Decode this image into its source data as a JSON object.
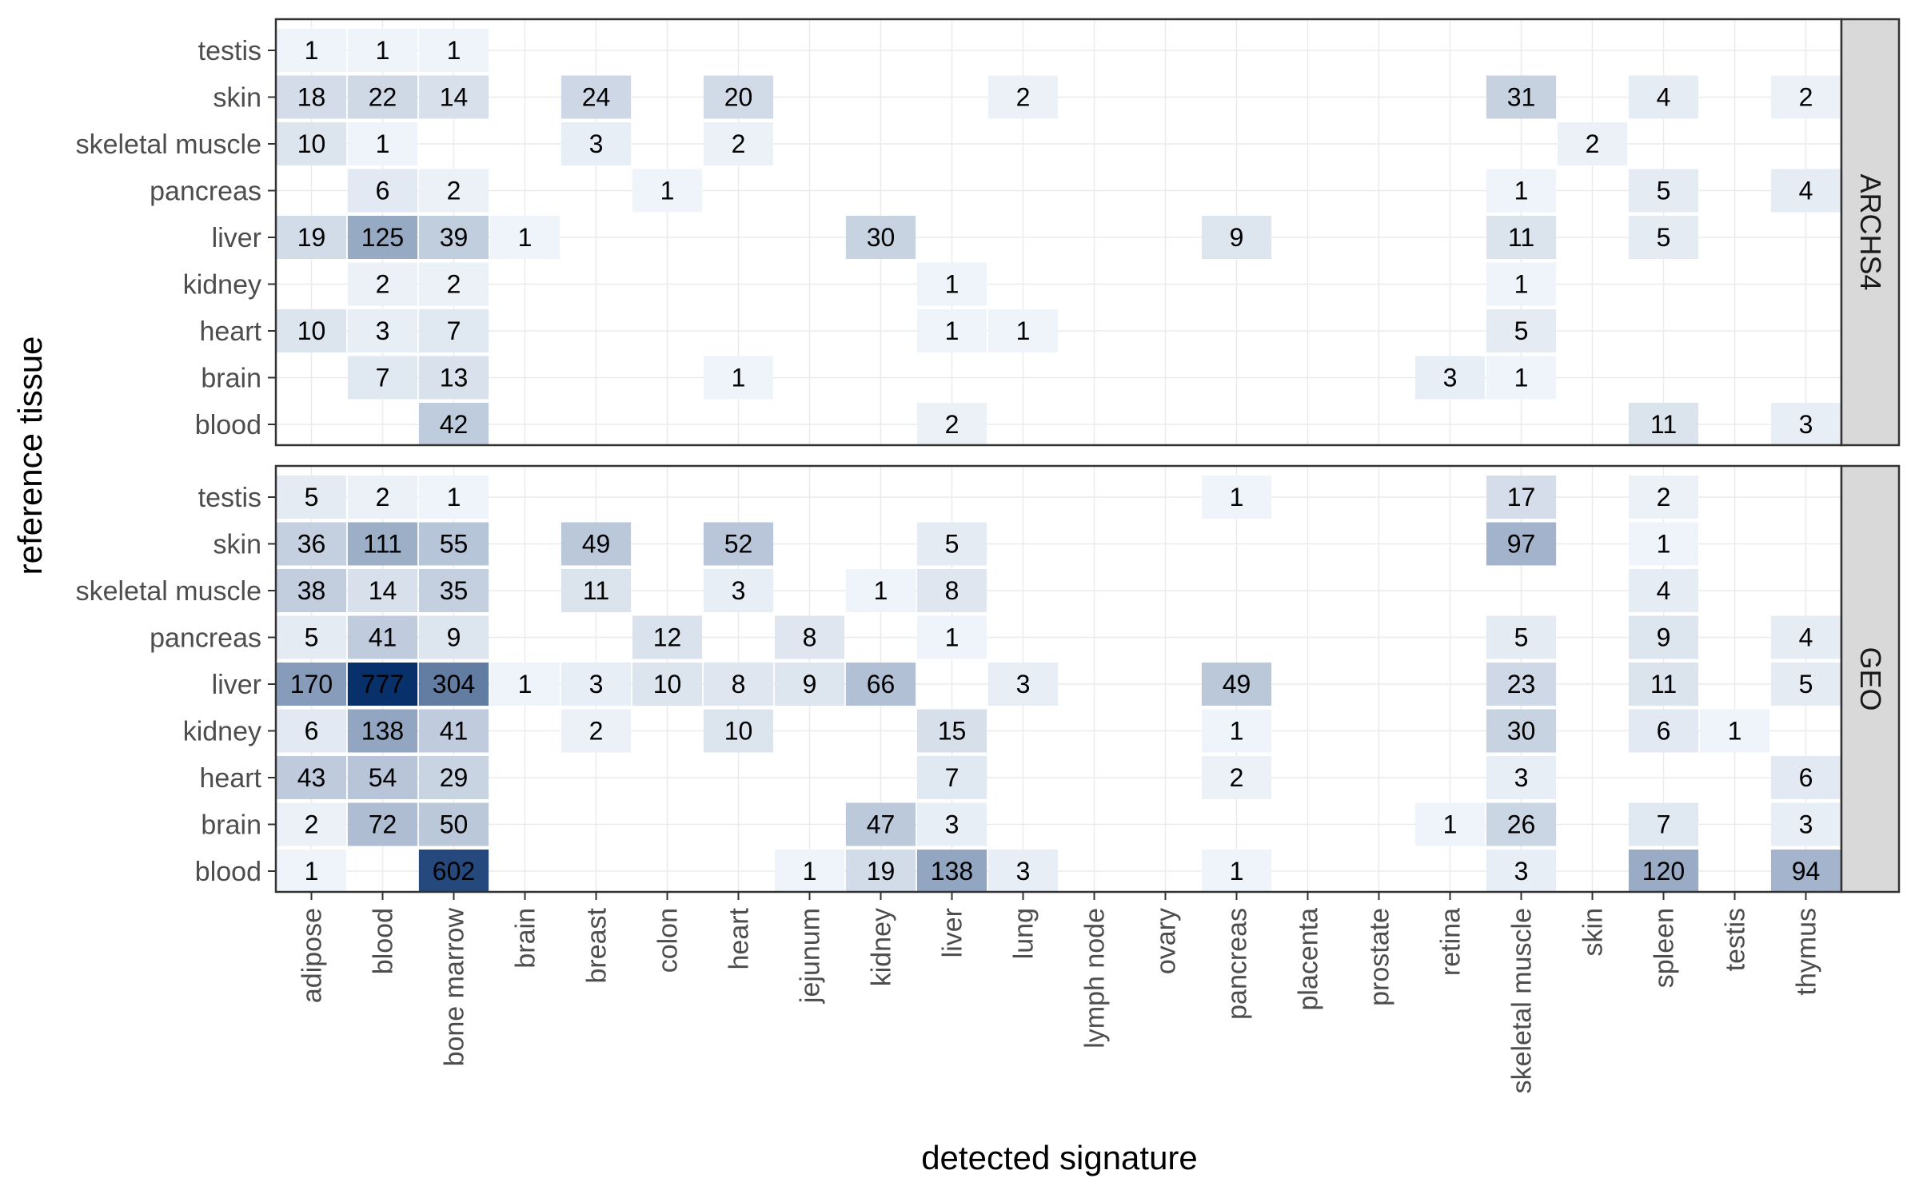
{
  "chart_data": {
    "type": "heatmap",
    "xlabel": "detected signature",
    "ylabel": "reference tissue",
    "x_categories": [
      "adipose",
      "blood",
      "bone marrow",
      "brain",
      "breast",
      "colon",
      "heart",
      "jejunum",
      "kidney",
      "liver",
      "lung",
      "lymph node",
      "ovary",
      "pancreas",
      "placenta",
      "prostate",
      "retina",
      "skeletal muscle",
      "skin",
      "spleen",
      "testis",
      "thymus"
    ],
    "y_categories": [
      "testis",
      "skin",
      "skeletal muscle",
      "pancreas",
      "liver",
      "kidney",
      "heart",
      "brain",
      "blood"
    ],
    "color_scale": {
      "low": "#f7fbff",
      "high": "#08306b",
      "max_value": 777
    },
    "grid": true,
    "facets": [
      {
        "name": "ARCHS4",
        "cells": [
          {
            "y": "testis",
            "x": "adipose",
            "v": 1
          },
          {
            "y": "testis",
            "x": "blood",
            "v": 1
          },
          {
            "y": "testis",
            "x": "bone marrow",
            "v": 1
          },
          {
            "y": "skin",
            "x": "adipose",
            "v": 18
          },
          {
            "y": "skin",
            "x": "blood",
            "v": 22
          },
          {
            "y": "skin",
            "x": "bone marrow",
            "v": 14
          },
          {
            "y": "skin",
            "x": "breast",
            "v": 24
          },
          {
            "y": "skin",
            "x": "heart",
            "v": 20
          },
          {
            "y": "skin",
            "x": "lung",
            "v": 2
          },
          {
            "y": "skin",
            "x": "skeletal muscle",
            "v": 31
          },
          {
            "y": "skin",
            "x": "spleen",
            "v": 4
          },
          {
            "y": "skin",
            "x": "thymus",
            "v": 2
          },
          {
            "y": "skeletal muscle",
            "x": "adipose",
            "v": 10
          },
          {
            "y": "skeletal muscle",
            "x": "blood",
            "v": 1
          },
          {
            "y": "skeletal muscle",
            "x": "breast",
            "v": 3
          },
          {
            "y": "skeletal muscle",
            "x": "heart",
            "v": 2
          },
          {
            "y": "skeletal muscle",
            "x": "skin",
            "v": 2
          },
          {
            "y": "pancreas",
            "x": "blood",
            "v": 6
          },
          {
            "y": "pancreas",
            "x": "bone marrow",
            "v": 2
          },
          {
            "y": "pancreas",
            "x": "colon",
            "v": 1
          },
          {
            "y": "pancreas",
            "x": "skeletal muscle",
            "v": 1
          },
          {
            "y": "pancreas",
            "x": "spleen",
            "v": 5
          },
          {
            "y": "pancreas",
            "x": "thymus",
            "v": 4
          },
          {
            "y": "liver",
            "x": "adipose",
            "v": 19
          },
          {
            "y": "liver",
            "x": "blood",
            "v": 125
          },
          {
            "y": "liver",
            "x": "bone marrow",
            "v": 39
          },
          {
            "y": "liver",
            "x": "brain",
            "v": 1
          },
          {
            "y": "liver",
            "x": "kidney",
            "v": 30
          },
          {
            "y": "liver",
            "x": "pancreas",
            "v": 9
          },
          {
            "y": "liver",
            "x": "skeletal muscle",
            "v": 11
          },
          {
            "y": "liver",
            "x": "spleen",
            "v": 5
          },
          {
            "y": "kidney",
            "x": "blood",
            "v": 2
          },
          {
            "y": "kidney",
            "x": "bone marrow",
            "v": 2
          },
          {
            "y": "kidney",
            "x": "liver",
            "v": 1
          },
          {
            "y": "kidney",
            "x": "skeletal muscle",
            "v": 1
          },
          {
            "y": "heart",
            "x": "adipose",
            "v": 10
          },
          {
            "y": "heart",
            "x": "blood",
            "v": 3
          },
          {
            "y": "heart",
            "x": "bone marrow",
            "v": 7
          },
          {
            "y": "heart",
            "x": "liver",
            "v": 1
          },
          {
            "y": "heart",
            "x": "lung",
            "v": 1
          },
          {
            "y": "heart",
            "x": "skeletal muscle",
            "v": 5
          },
          {
            "y": "brain",
            "x": "blood",
            "v": 7
          },
          {
            "y": "brain",
            "x": "bone marrow",
            "v": 13
          },
          {
            "y": "brain",
            "x": "heart",
            "v": 1
          },
          {
            "y": "brain",
            "x": "retina",
            "v": 3
          },
          {
            "y": "brain",
            "x": "skeletal muscle",
            "v": 1
          },
          {
            "y": "blood",
            "x": "bone marrow",
            "v": 42
          },
          {
            "y": "blood",
            "x": "liver",
            "v": 2
          },
          {
            "y": "blood",
            "x": "spleen",
            "v": 11
          },
          {
            "y": "blood",
            "x": "thymus",
            "v": 3
          }
        ]
      },
      {
        "name": "GEO",
        "cells": [
          {
            "y": "testis",
            "x": "adipose",
            "v": 5
          },
          {
            "y": "testis",
            "x": "blood",
            "v": 2
          },
          {
            "y": "testis",
            "x": "bone marrow",
            "v": 1
          },
          {
            "y": "testis",
            "x": "pancreas",
            "v": 1
          },
          {
            "y": "testis",
            "x": "skeletal muscle",
            "v": 17
          },
          {
            "y": "testis",
            "x": "spleen",
            "v": 2
          },
          {
            "y": "skin",
            "x": "adipose",
            "v": 36
          },
          {
            "y": "skin",
            "x": "blood",
            "v": 111
          },
          {
            "y": "skin",
            "x": "bone marrow",
            "v": 55
          },
          {
            "y": "skin",
            "x": "breast",
            "v": 49
          },
          {
            "y": "skin",
            "x": "heart",
            "v": 52
          },
          {
            "y": "skin",
            "x": "liver",
            "v": 5
          },
          {
            "y": "skin",
            "x": "skeletal muscle",
            "v": 97
          },
          {
            "y": "skin",
            "x": "spleen",
            "v": 1
          },
          {
            "y": "skeletal muscle",
            "x": "adipose",
            "v": 38
          },
          {
            "y": "skeletal muscle",
            "x": "blood",
            "v": 14
          },
          {
            "y": "skeletal muscle",
            "x": "bone marrow",
            "v": 35
          },
          {
            "y": "skeletal muscle",
            "x": "breast",
            "v": 11
          },
          {
            "y": "skeletal muscle",
            "x": "heart",
            "v": 3
          },
          {
            "y": "skeletal muscle",
            "x": "kidney",
            "v": 1
          },
          {
            "y": "skeletal muscle",
            "x": "liver",
            "v": 8
          },
          {
            "y": "skeletal muscle",
            "x": "spleen",
            "v": 4
          },
          {
            "y": "pancreas",
            "x": "adipose",
            "v": 5
          },
          {
            "y": "pancreas",
            "x": "blood",
            "v": 41
          },
          {
            "y": "pancreas",
            "x": "bone marrow",
            "v": 9
          },
          {
            "y": "pancreas",
            "x": "colon",
            "v": 12
          },
          {
            "y": "pancreas",
            "x": "jejunum",
            "v": 8
          },
          {
            "y": "pancreas",
            "x": "liver",
            "v": 1
          },
          {
            "y": "pancreas",
            "x": "skeletal muscle",
            "v": 5
          },
          {
            "y": "pancreas",
            "x": "spleen",
            "v": 9
          },
          {
            "y": "pancreas",
            "x": "thymus",
            "v": 4
          },
          {
            "y": "liver",
            "x": "adipose",
            "v": 170
          },
          {
            "y": "liver",
            "x": "blood",
            "v": 777
          },
          {
            "y": "liver",
            "x": "bone marrow",
            "v": 304
          },
          {
            "y": "liver",
            "x": "brain",
            "v": 1
          },
          {
            "y": "liver",
            "x": "breast",
            "v": 3
          },
          {
            "y": "liver",
            "x": "colon",
            "v": 10
          },
          {
            "y": "liver",
            "x": "heart",
            "v": 8
          },
          {
            "y": "liver",
            "x": "jejunum",
            "v": 9
          },
          {
            "y": "liver",
            "x": "kidney",
            "v": 66
          },
          {
            "y": "liver",
            "x": "lung",
            "v": 3
          },
          {
            "y": "liver",
            "x": "pancreas",
            "v": 49
          },
          {
            "y": "liver",
            "x": "skeletal muscle",
            "v": 23
          },
          {
            "y": "liver",
            "x": "spleen",
            "v": 11
          },
          {
            "y": "liver",
            "x": "thymus",
            "v": 5
          },
          {
            "y": "kidney",
            "x": "adipose",
            "v": 6
          },
          {
            "y": "kidney",
            "x": "blood",
            "v": 138
          },
          {
            "y": "kidney",
            "x": "bone marrow",
            "v": 41
          },
          {
            "y": "kidney",
            "x": "breast",
            "v": 2
          },
          {
            "y": "kidney",
            "x": "heart",
            "v": 10
          },
          {
            "y": "kidney",
            "x": "liver",
            "v": 15
          },
          {
            "y": "kidney",
            "x": "pancreas",
            "v": 1
          },
          {
            "y": "kidney",
            "x": "skeletal muscle",
            "v": 30
          },
          {
            "y": "kidney",
            "x": "spleen",
            "v": 6
          },
          {
            "y": "kidney",
            "x": "testis",
            "v": 1
          },
          {
            "y": "heart",
            "x": "adipose",
            "v": 43
          },
          {
            "y": "heart",
            "x": "blood",
            "v": 54
          },
          {
            "y": "heart",
            "x": "bone marrow",
            "v": 29
          },
          {
            "y": "heart",
            "x": "liver",
            "v": 7
          },
          {
            "y": "heart",
            "x": "pancreas",
            "v": 2
          },
          {
            "y": "heart",
            "x": "skeletal muscle",
            "v": 3
          },
          {
            "y": "heart",
            "x": "thymus",
            "v": 6
          },
          {
            "y": "brain",
            "x": "adipose",
            "v": 2
          },
          {
            "y": "brain",
            "x": "blood",
            "v": 72
          },
          {
            "y": "brain",
            "x": "bone marrow",
            "v": 50
          },
          {
            "y": "brain",
            "x": "kidney",
            "v": 47
          },
          {
            "y": "brain",
            "x": "liver",
            "v": 3
          },
          {
            "y": "brain",
            "x": "retina",
            "v": 1
          },
          {
            "y": "brain",
            "x": "skeletal muscle",
            "v": 26
          },
          {
            "y": "brain",
            "x": "spleen",
            "v": 7
          },
          {
            "y": "brain",
            "x": "thymus",
            "v": 3
          },
          {
            "y": "blood",
            "x": "adipose",
            "v": 1
          },
          {
            "y": "blood",
            "x": "bone marrow",
            "v": 602
          },
          {
            "y": "blood",
            "x": "jejunum",
            "v": 1
          },
          {
            "y": "blood",
            "x": "kidney",
            "v": 19
          },
          {
            "y": "blood",
            "x": "liver",
            "v": 138
          },
          {
            "y": "blood",
            "x": "lung",
            "v": 3
          },
          {
            "y": "blood",
            "x": "pancreas",
            "v": 1
          },
          {
            "y": "blood",
            "x": "skeletal muscle",
            "v": 3
          },
          {
            "y": "blood",
            "x": "spleen",
            "v": 120
          },
          {
            "y": "blood",
            "x": "thymus",
            "v": 94
          }
        ]
      }
    ]
  }
}
